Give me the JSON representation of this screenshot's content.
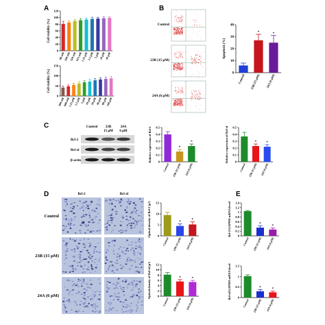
{
  "panels": {
    "A": "A",
    "B": "B",
    "C": "C",
    "D": "D",
    "E": "E"
  },
  "flow": {
    "labels": [
      "Control",
      "23B (15 μM)",
      "24A (6 μM)"
    ]
  },
  "blot": {
    "headers": [
      {
        "line1": "Control",
        "line2": ""
      },
      {
        "line1": "23B",
        "line2": "15 μM"
      },
      {
        "line1": "24A",
        "line2": "6 μM"
      }
    ],
    "rows": [
      "Bcl-2",
      "Bcl-xl",
      "β-actin"
    ]
  },
  "ihc": {
    "col_headers": [
      "Bcl-2",
      "Bcl-xl"
    ],
    "row_labels": [
      "Control",
      "23B (15 μM)",
      "24A (6 μM)"
    ]
  },
  "sig_mark": "*",
  "chart_data": [
    {
      "id": "A1",
      "type": "bar",
      "ylabel": "Cell viability (%)",
      "categories": [
        "80 nM",
        "160 nM",
        "320 nM",
        "625 nM",
        "1.25 μM",
        "2.5 μM",
        "5 μM",
        "10 μM",
        "20 μM"
      ],
      "values": [
        81,
        85,
        90,
        92,
        94,
        96,
        97,
        98,
        99
      ],
      "errors": [
        8,
        5,
        4,
        5,
        4,
        5,
        4,
        5,
        4
      ],
      "colors": [
        "#d62728",
        "#ff7f0e",
        "#bcbd22",
        "#2ca02c",
        "#17becf",
        "#1f77b4",
        "#3a3aa0",
        "#9467bd",
        "#e377c2"
      ],
      "ylim": [
        0,
        120
      ],
      "yticks": [
        0,
        20,
        40,
        60,
        80,
        100,
        120
      ]
    },
    {
      "id": "A2",
      "type": "bar",
      "ylabel": "Cell viability (%)",
      "categories": [
        "300 nM",
        "600 nM",
        "1.25 μM",
        "2.5 μM",
        "5 μM",
        "10 μM",
        "20 μM",
        "40 μM",
        "80 μM",
        "160 μM"
      ],
      "values": [
        42,
        48,
        55,
        62,
        68,
        72,
        78,
        82,
        85,
        88
      ],
      "errors": [
        8,
        7,
        8,
        9,
        8,
        10,
        9,
        8,
        9,
        10
      ],
      "colors": [
        "#8c564b",
        "#d62728",
        "#ff7f0e",
        "#bcbd22",
        "#2ca02c",
        "#17becf",
        "#1f77b4",
        "#3a3aa0",
        "#9467bd",
        "#e377c2"
      ],
      "ylim": [
        0,
        150
      ],
      "yticks": [
        0,
        50,
        100,
        150
      ]
    },
    {
      "id": "B",
      "type": "bar",
      "ylabel": "Apoptosis (%)",
      "categories": [
        "Control",
        "23B (15 μM)",
        "24A (6 μM)"
      ],
      "values": [
        6,
        27,
        25
      ],
      "errors": [
        2,
        5,
        6
      ],
      "colors": [
        "#1f3fd8",
        "#c4161c",
        "#6a1b9a"
      ],
      "sig": [
        false,
        true,
        true
      ],
      "ylim": [
        0,
        40
      ],
      "yticks": [
        0,
        10,
        20,
        30,
        40
      ]
    },
    {
      "id": "C1",
      "type": "bar",
      "ylabel": "Relative expression of Bcl-2",
      "categories": [
        "Control",
        "23B (15 μM)",
        "24A (6 μM)"
      ],
      "values": [
        0.4,
        0.15,
        0.23
      ],
      "errors": [
        0.04,
        0.03,
        0.03
      ],
      "colors": [
        "#8e2bd6",
        "#c9961c",
        "#1d8b2a"
      ],
      "sig": [
        false,
        true,
        true
      ],
      "ylim": [
        0,
        0.5
      ],
      "yticks": [
        0,
        0.1,
        0.2,
        0.3,
        0.4,
        0.5
      ]
    },
    {
      "id": "C2",
      "type": "bar",
      "ylabel": "Relative expression of Bcl-xl",
      "categories": [
        "Control",
        "23B (15 μM)",
        "24A (6 μM)"
      ],
      "values": [
        0.37,
        0.23,
        0.22
      ],
      "errors": [
        0.06,
        0.03,
        0.03
      ],
      "colors": [
        "#1d8b2a",
        "#e8151b",
        "#2a4cf0"
      ],
      "sig": [
        false,
        true,
        true
      ],
      "ylim": [
        0,
        0.5
      ],
      "yticks": [
        0,
        0.1,
        0.2,
        0.3,
        0.4,
        0.5
      ]
    },
    {
      "id": "D1",
      "type": "bar",
      "ylabel": "Optical density of Bcl-2 (μ²)",
      "categories": [
        "Control",
        "23B (15 μM)",
        "24A (6 μM)"
      ],
      "values": [
        9.5,
        4.5,
        5.2
      ],
      "errors": [
        1.2,
        1.0,
        1.2
      ],
      "colors": [
        "#9e9a1a",
        "#2a45e8",
        "#c4161c"
      ],
      "sig": [
        false,
        true,
        true
      ],
      "ylim": [
        0,
        15
      ],
      "yticks": [
        0,
        5,
        10,
        15
      ]
    },
    {
      "id": "D2",
      "type": "bar",
      "ylabel": "Optical density of Bcl-xl (μ²)",
      "categories": [
        "Control",
        "23B (15 μM)",
        "24A (6 μM)"
      ],
      "values": [
        8.2,
        5.6,
        5.4
      ],
      "errors": [
        0.8,
        0.7,
        0.6
      ],
      "colors": [
        "#1d8b2a",
        "#e8151b",
        "#b02bd6"
      ],
      "sig": [
        false,
        true,
        true
      ],
      "ylim": [
        0,
        12
      ],
      "yticks": [
        0,
        2,
        4,
        6,
        8,
        10,
        12
      ]
    },
    {
      "id": "E1",
      "type": "bar",
      "ylabel": "Bcl-2/GAPDH mRNA level",
      "categories": [
        "Control",
        "23B (15 μM)",
        "24A (6 μM)"
      ],
      "values": [
        1.05,
        0.35,
        0.27
      ],
      "errors": [
        0.03,
        0.08,
        0.07
      ],
      "colors": [
        "#1d8b2a",
        "#1a2fd0",
        "#9a1ba8"
      ],
      "sig": [
        false,
        true,
        true
      ],
      "ylim": [
        0,
        1.4
      ],
      "yticks": [
        0,
        0.2,
        0.4,
        0.6,
        0.8,
        1.0,
        1.2,
        1.4
      ]
    },
    {
      "id": "E2",
      "type": "bar",
      "ylabel": "Bcl-xl/GAPDH mRNA level",
      "categories": [
        "Control",
        "23B (15 μM)",
        "24A (6 μM)"
      ],
      "values": [
        1.02,
        0.3,
        0.25
      ],
      "errors": [
        0.06,
        0.08,
        0.06
      ],
      "colors": [
        "#1d8b2a",
        "#1a2fd0",
        "#e8151b"
      ],
      "sig": [
        false,
        true,
        true
      ],
      "ylim": [
        0,
        1.5
      ],
      "yticks": [
        0,
        0.5,
        1.0,
        1.5
      ]
    }
  ]
}
